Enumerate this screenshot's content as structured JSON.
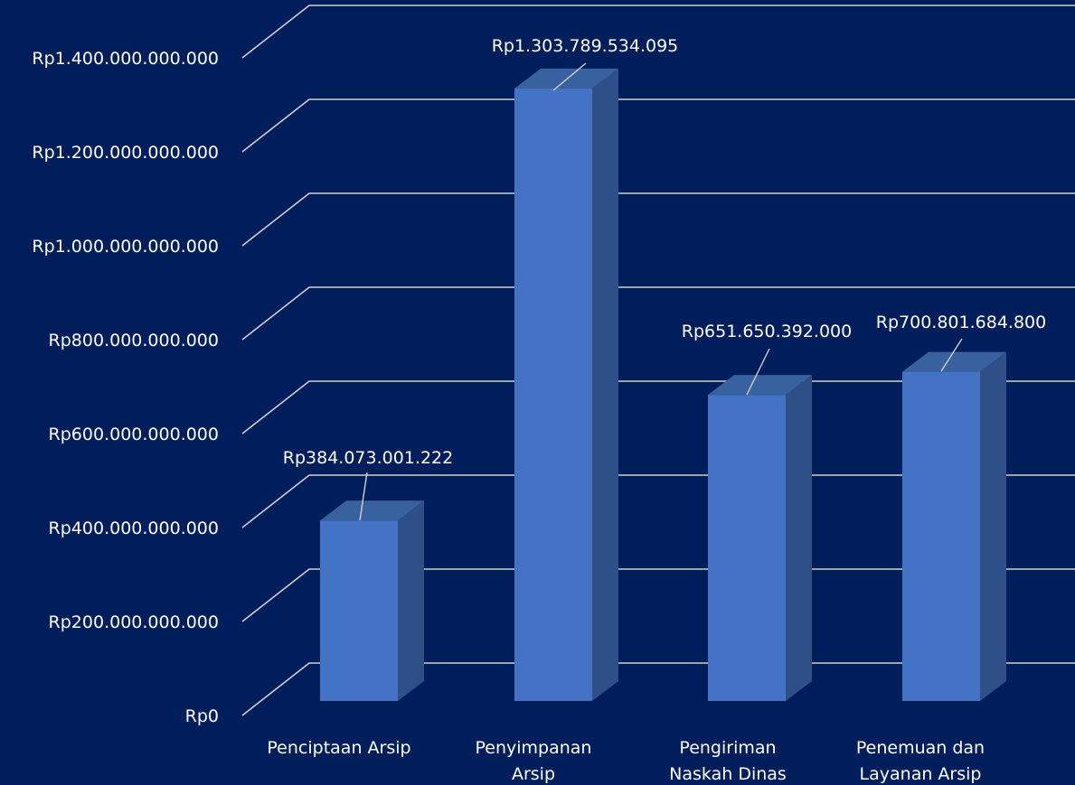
{
  "chart_data": {
    "type": "bar",
    "title": "",
    "xlabel": "",
    "ylabel": "",
    "categories": [
      [
        "Penciptaan Arsip"
      ],
      [
        "Penyimpanan",
        "Arsip"
      ],
      [
        "Pengiriman",
        "Naskah Dinas"
      ],
      [
        "Penemuan dan",
        "Layanan Arsip"
      ]
    ],
    "values": [
      384073001222,
      1303789534095,
      651650392000,
      700801684800
    ],
    "data_labels": [
      "Rp384.073.001.222",
      "Rp1.303.789.534.095",
      "Rp651.650.392.000",
      "Rp700.801.684.800"
    ],
    "ylim": [
      0,
      1400000000000
    ],
    "yticks": [
      0,
      200000000000,
      400000000000,
      600000000000,
      800000000000,
      1000000000000,
      1200000000000,
      1400000000000
    ],
    "ytick_labels": [
      "Rp0",
      "Rp200.000.000.000",
      "Rp400.000.000.000",
      "Rp600.000.000.000",
      "Rp800.000.000.000",
      "Rp1.000.000.000.000",
      "Rp1.200.000.000.000",
      "Rp1.400.000.000.000"
    ],
    "grid": true,
    "style": "3d-column"
  },
  "colors": {
    "background": "#001e5c",
    "bar_front": "#4472c4",
    "bar_side": "#2f4f88",
    "bar_top": "#38619f",
    "grid": "#d0d0d0",
    "text": "#ffffff"
  }
}
